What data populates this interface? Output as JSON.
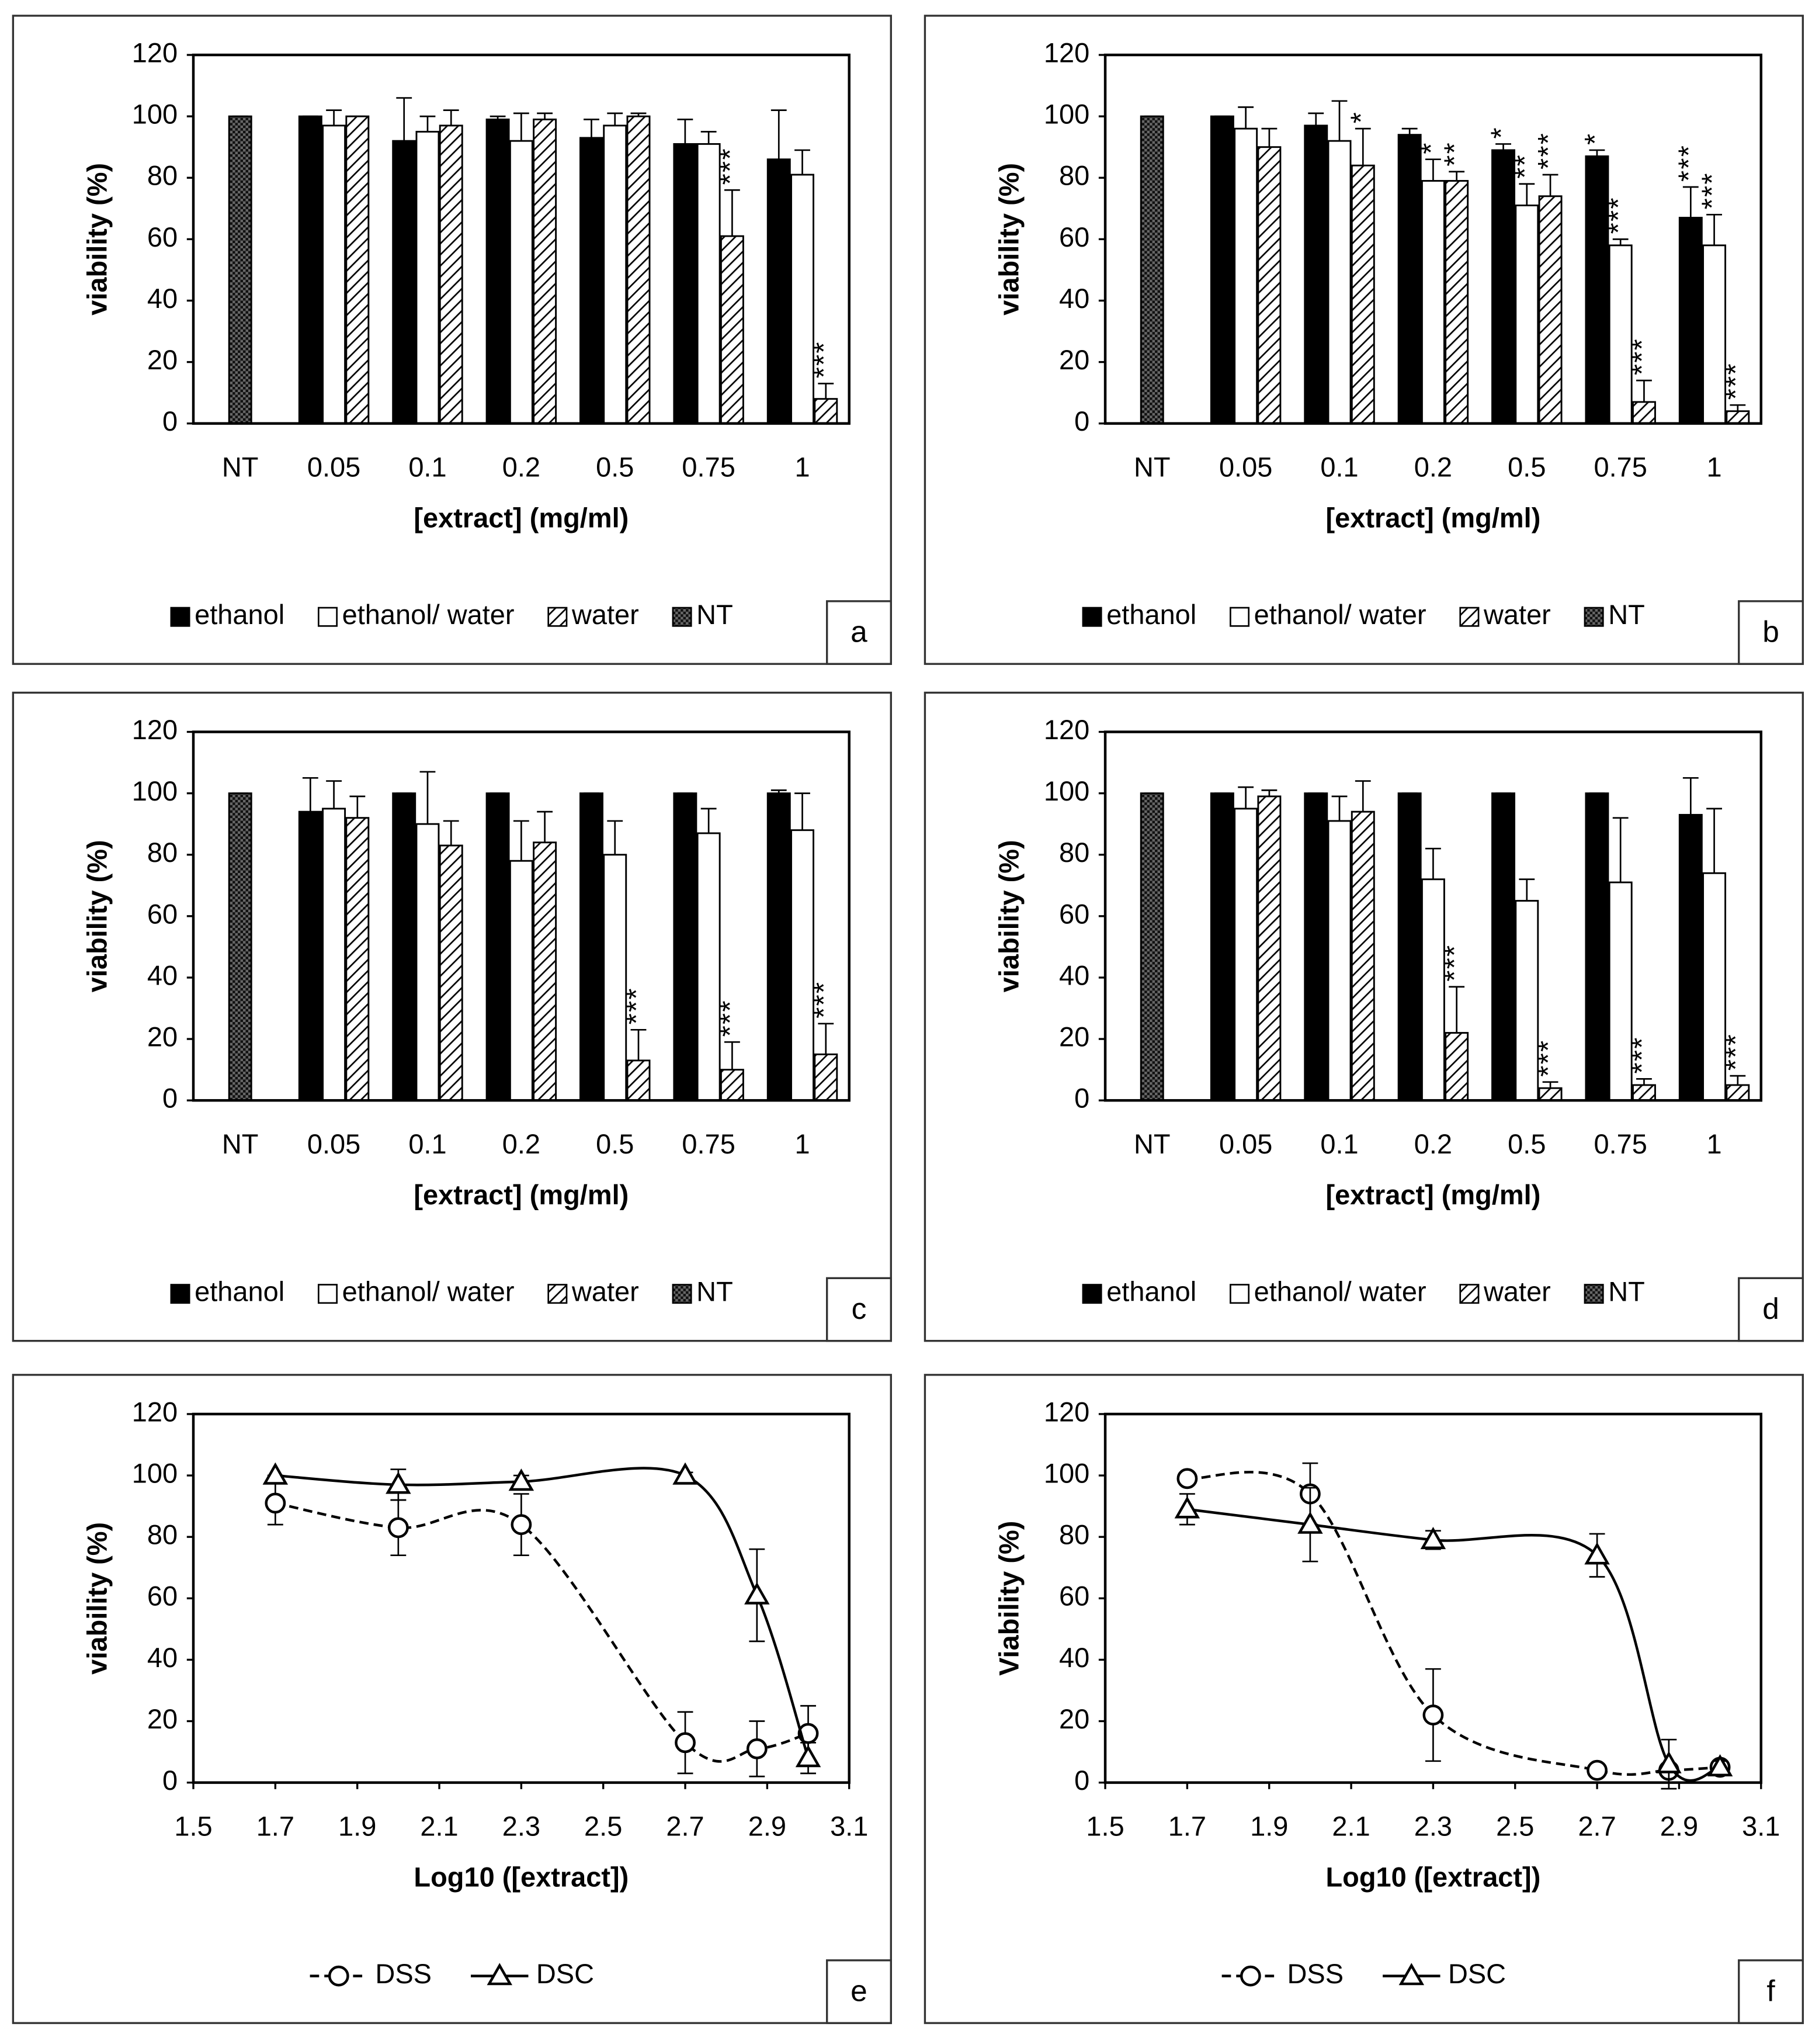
{
  "chart_data": [
    {
      "type": "bar",
      "panel": "a",
      "ylabel": "viability (%)",
      "xlabel": "[extract] (mg/ml)",
      "categories": [
        "NT",
        "0.05",
        "0.1",
        "0.2",
        "0.5",
        "0.75",
        "1"
      ],
      "ylim": [
        0,
        120
      ],
      "yticks": [
        0,
        20,
        40,
        60,
        80,
        100,
        120
      ],
      "series": [
        {
          "name": "ethanol",
          "color": "#000000",
          "values": [
            null,
            100,
            92,
            99,
            93,
            91,
            86
          ],
          "errors": [
            null,
            0,
            14,
            1,
            6,
            8,
            16
          ]
        },
        {
          "name": "ethanol/ water",
          "color": "#ffffff",
          "values": [
            null,
            97,
            95,
            92,
            97,
            91,
            81
          ],
          "errors": [
            null,
            5,
            5,
            9,
            4,
            4,
            8
          ]
        },
        {
          "name": "water",
          "color": "#ffffff",
          "pattern": "hatch",
          "values": [
            null,
            100,
            97,
            99,
            100,
            61,
            8
          ],
          "errors": [
            null,
            0,
            5,
            2,
            1,
            15,
            5
          ],
          "annotations": [
            null,
            null,
            null,
            null,
            null,
            "***",
            "***"
          ]
        },
        {
          "name": "NT",
          "color": "#555555",
          "pattern": "dots",
          "values": [
            100,
            null,
            null,
            null,
            null,
            null,
            null
          ],
          "errors": [
            0,
            null,
            null,
            null,
            null,
            null,
            null
          ]
        }
      ]
    },
    {
      "type": "bar",
      "panel": "b",
      "ylabel": "viability (%)",
      "xlabel": "[extract] (mg/ml)",
      "categories": [
        "NT",
        "0.05",
        "0.1",
        "0.2",
        "0.5",
        "0.75",
        "1"
      ],
      "ylim": [
        0,
        120
      ],
      "yticks": [
        0,
        20,
        40,
        60,
        80,
        100,
        120
      ],
      "series": [
        {
          "name": "ethanol",
          "color": "#000000",
          "values": [
            null,
            100,
            97,
            94,
            89,
            87,
            67
          ],
          "errors": [
            null,
            0,
            4,
            2,
            2,
            2,
            10
          ],
          "annotations": [
            null,
            null,
            null,
            null,
            "*",
            "*",
            "***"
          ]
        },
        {
          "name": "ethanol/ water",
          "color": "#ffffff",
          "values": [
            null,
            96,
            92,
            79,
            71,
            58,
            58
          ],
          "errors": [
            null,
            7,
            13,
            7,
            7,
            2,
            10
          ],
          "annotations": [
            null,
            null,
            null,
            "*",
            "**",
            "***",
            "***"
          ]
        },
        {
          "name": "water",
          "color": "#ffffff",
          "pattern": "hatch",
          "values": [
            null,
            90,
            84,
            79,
            74,
            7,
            4
          ],
          "errors": [
            null,
            6,
            12,
            3,
            7,
            7,
            2
          ],
          "annotations": [
            null,
            null,
            "*",
            "**",
            "***",
            "***",
            "***"
          ]
        },
        {
          "name": "NT",
          "color": "#555555",
          "pattern": "dots",
          "values": [
            100,
            null,
            null,
            null,
            null,
            null,
            null
          ],
          "errors": [
            0,
            null,
            null,
            null,
            null,
            null,
            null
          ]
        }
      ]
    },
    {
      "type": "bar",
      "panel": "c",
      "ylabel": "viability (%)",
      "xlabel": "[extract] (mg/ml)",
      "categories": [
        "NT",
        "0.05",
        "0.1",
        "0.2",
        "0.5",
        "0.75",
        "1"
      ],
      "ylim": [
        0,
        120
      ],
      "yticks": [
        0,
        20,
        40,
        60,
        80,
        100,
        120
      ],
      "series": [
        {
          "name": "ethanol",
          "color": "#000000",
          "values": [
            null,
            94,
            100,
            100,
            100,
            100,
            100
          ],
          "errors": [
            null,
            11,
            0,
            0,
            0,
            0,
            1
          ]
        },
        {
          "name": "ethanol/ water",
          "color": "#ffffff",
          "values": [
            null,
            95,
            90,
            78,
            80,
            87,
            88
          ],
          "errors": [
            null,
            9,
            17,
            13,
            11,
            8,
            12
          ]
        },
        {
          "name": "water",
          "color": "#ffffff",
          "pattern": "hatch",
          "values": [
            null,
            92,
            83,
            84,
            13,
            10,
            15
          ],
          "errors": [
            null,
            7,
            8,
            10,
            10,
            9,
            10
          ],
          "annotations": [
            null,
            null,
            null,
            null,
            "***",
            "***",
            "***"
          ]
        },
        {
          "name": "NT",
          "color": "#555555",
          "pattern": "dots",
          "values": [
            100,
            null,
            null,
            null,
            null,
            null,
            null
          ],
          "errors": [
            0,
            null,
            null,
            null,
            null,
            null,
            null
          ]
        }
      ]
    },
    {
      "type": "bar",
      "panel": "d",
      "ylabel": "viability (%)",
      "xlabel": "[extract] (mg/ml)",
      "categories": [
        "NT",
        "0.05",
        "0.1",
        "0.2",
        "0.5",
        "0.75",
        "1"
      ],
      "ylim": [
        0,
        120
      ],
      "yticks": [
        0,
        20,
        40,
        60,
        80,
        100,
        120
      ],
      "series": [
        {
          "name": "ethanol",
          "color": "#000000",
          "values": [
            null,
            100,
            100,
            100,
            100,
            100,
            93
          ],
          "errors": [
            null,
            0,
            0,
            0,
            0,
            0,
            12
          ]
        },
        {
          "name": "ethanol/ water",
          "color": "#ffffff",
          "values": [
            null,
            95,
            91,
            72,
            65,
            71,
            74
          ],
          "errors": [
            null,
            7,
            8,
            10,
            7,
            21,
            21
          ]
        },
        {
          "name": "water",
          "color": "#ffffff",
          "pattern": "hatch",
          "values": [
            null,
            99,
            94,
            22,
            4,
            5,
            5
          ],
          "errors": [
            null,
            2,
            10,
            15,
            2,
            2,
            3
          ],
          "annotations": [
            null,
            null,
            null,
            "***",
            "***",
            "***",
            "***"
          ]
        },
        {
          "name": "NT",
          "color": "#555555",
          "pattern": "dots",
          "values": [
            100,
            null,
            null,
            null,
            null,
            null,
            null
          ],
          "errors": [
            0,
            null,
            null,
            null,
            null,
            null,
            null
          ]
        }
      ]
    },
    {
      "type": "line",
      "panel": "e",
      "ylabel": "viability (%)",
      "xlabel": "Log10 ([extract])",
      "x": [
        1.7,
        2,
        2.3,
        2.7,
        2.875,
        3
      ],
      "xlim": [
        1.5,
        3.1
      ],
      "xticks": [
        1.5,
        1.7,
        1.9,
        2.1,
        2.3,
        2.5,
        2.7,
        2.9,
        3.1
      ],
      "ylim": [
        0,
        120
      ],
      "yticks": [
        0,
        20,
        40,
        60,
        80,
        100,
        120
      ],
      "series": [
        {
          "name": "DSS",
          "color": "#000000",
          "linestyle": "dashed",
          "marker": "circle",
          "values": [
            91,
            83,
            84,
            13,
            11,
            16
          ],
          "errors": [
            7,
            9,
            10,
            10,
            9,
            9
          ]
        },
        {
          "name": "DSC",
          "color": "#000000",
          "linestyle": "solid",
          "marker": "triangle",
          "values": [
            100,
            97,
            98,
            100,
            61,
            8
          ],
          "errors": [
            0,
            5,
            2,
            1,
            15,
            5
          ]
        }
      ]
    },
    {
      "type": "line",
      "panel": "f",
      "ylabel": "Viability (%)",
      "xlabel": "Log10 ([extract])",
      "x": [
        1.7,
        2,
        2.3,
        2.7,
        2.875,
        3
      ],
      "xlim": [
        1.5,
        3.1
      ],
      "xticks": [
        1.5,
        1.7,
        1.9,
        2.1,
        2.3,
        2.5,
        2.7,
        2.9,
        3.1
      ],
      "ylim": [
        0,
        120
      ],
      "yticks": [
        0,
        20,
        40,
        60,
        80,
        100,
        120
      ],
      "series": [
        {
          "name": "DSS",
          "color": "#000000",
          "linestyle": "dashed",
          "marker": "circle",
          "values": [
            99,
            94,
            22,
            4,
            4,
            5
          ],
          "errors": [
            0,
            10,
            15,
            1,
            1,
            2
          ]
        },
        {
          "name": "DSC",
          "color": "#000000",
          "linestyle": "solid",
          "marker": "triangle",
          "values": [
            89,
            84,
            79,
            74,
            6,
            5
          ],
          "errors": [
            5,
            12,
            3,
            7,
            8,
            2
          ]
        }
      ]
    }
  ]
}
